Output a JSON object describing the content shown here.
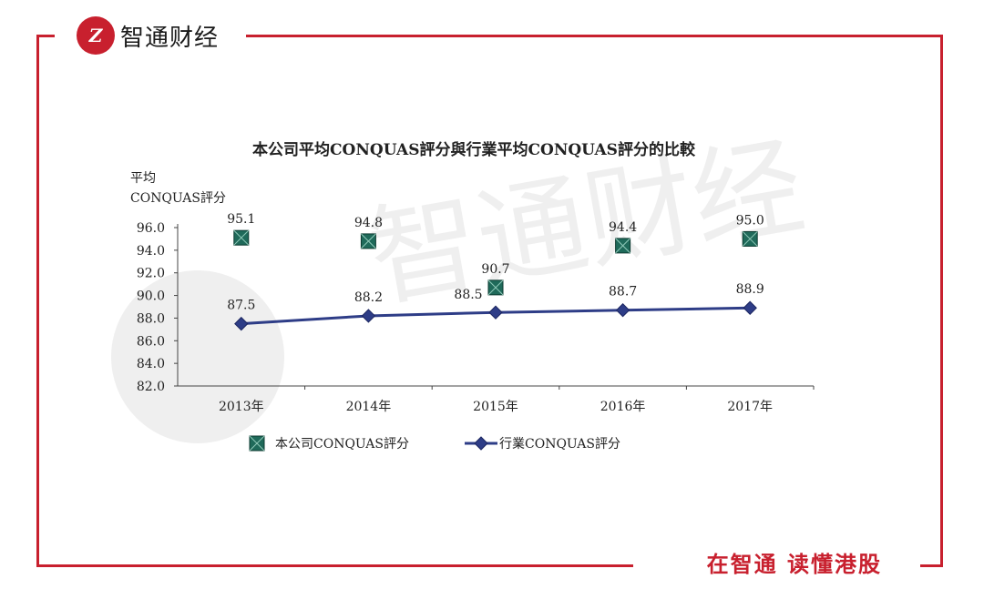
{
  "brand": {
    "name": "智通财经",
    "logo_text": "Z",
    "slogan": "在智通 读懂港股",
    "color": "#c8202e"
  },
  "chart_data": {
    "type": "line",
    "title": "本公司平均CONQUAS評分與行業平均CONQUAS評分的比較",
    "ylabel_line1": "平均",
    "ylabel_line2": "CONQUAS評分",
    "categories": [
      "2013年",
      "2014年",
      "2015年",
      "2016年",
      "2017年"
    ],
    "ylim": [
      82.0,
      96.0
    ],
    "yticks": [
      "82.0",
      "84.0",
      "86.0",
      "88.0",
      "90.0",
      "92.0",
      "94.0",
      "96.0"
    ],
    "series": [
      {
        "name": "本公司CONQUAS評分",
        "marker": "square",
        "line": false,
        "color": "#1f6a5a",
        "values": [
          95.1,
          94.8,
          90.7,
          94.4,
          95.0
        ],
        "labels": [
          "95.1",
          "94.8",
          "90.7",
          "94.4",
          "95.0"
        ]
      },
      {
        "name": "行業CONQUAS評分",
        "marker": "diamond",
        "line": true,
        "color": "#2e3d87",
        "values": [
          87.5,
          88.2,
          88.5,
          88.7,
          88.9
        ],
        "labels": [
          "87.5",
          "88.2",
          "88.5",
          "88.7",
          "88.9"
        ]
      }
    ],
    "grid": false,
    "legend_position": "bottom"
  }
}
